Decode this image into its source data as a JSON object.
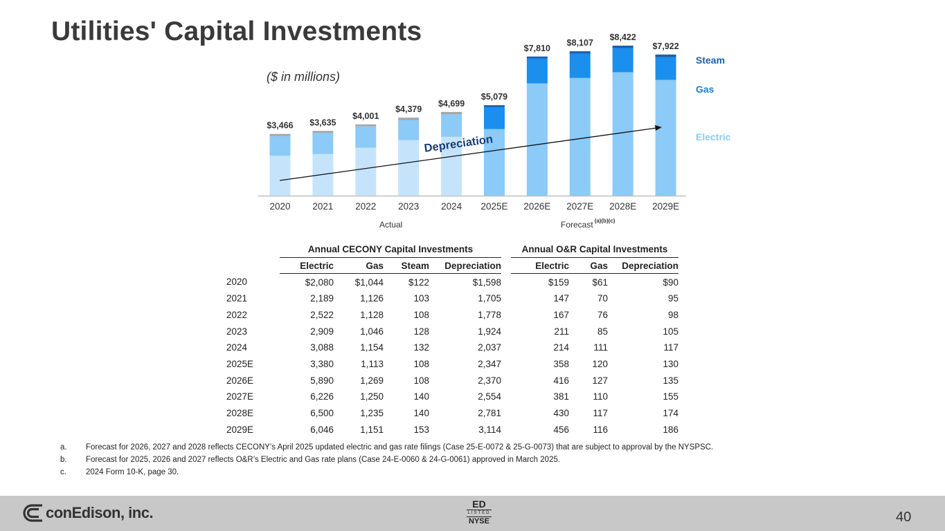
{
  "slide": {
    "title": "Utilities' Capital Investments",
    "units_note": "($ in millions)",
    "page_number": "40"
  },
  "chart_data": {
    "type": "bar",
    "stacked": true,
    "title": "Utilities' Capital Investments",
    "units": "($ in millions)",
    "categories": [
      "2020",
      "2021",
      "2022",
      "2023",
      "2024",
      "2025E",
      "2026E",
      "2027E",
      "2028E",
      "2029E"
    ],
    "totals": [
      3466,
      3635,
      4001,
      4379,
      4699,
      5079,
      7810,
      8107,
      8422,
      7922
    ],
    "total_labels": [
      "$3,466",
      "$3,635",
      "$4,001",
      "$4,379",
      "$4,699",
      "$5,079",
      "$7,810",
      "$8,107",
      "$8,422",
      "$7,922"
    ],
    "series": [
      {
        "name": "Electric",
        "values": [
          2239,
          2336,
          2689,
          3120,
          3302,
          3738,
          6306,
          6607,
          6930,
          6502
        ]
      },
      {
        "name": "Gas",
        "values": [
          1105,
          1196,
          1204,
          1131,
          1265,
          1233,
          1396,
          1360,
          1352,
          1267
        ]
      },
      {
        "name": "Steam",
        "values": [
          122,
          103,
          108,
          128,
          132,
          108,
          108,
          140,
          140,
          153
        ]
      }
    ],
    "depreciation_line": {
      "label": "Depreciation",
      "from_category": "2020",
      "to_category": "2029E"
    },
    "legend": [
      "Steam",
      "Gas",
      "Electric"
    ],
    "legend_position": "right",
    "group_labels": {
      "actual": "Actual",
      "forecast": "Forecast",
      "forecast_notes": "(a)(b)(c)"
    },
    "ylim": [
      0,
      9000
    ],
    "colors": {
      "actual": {
        "Electric": "#c5e4fc",
        "Gas": "#8ccaf7",
        "Steam": "#a6a6a6"
      },
      "forecast": {
        "Electric": "#8ccaf7",
        "Gas": "#1a8fee",
        "Steam": "#1d5ea8"
      }
    }
  },
  "table": {
    "cecony_header": "Annual CECONY Capital Investments",
    "or_header": "Annual O&R Capital Investments",
    "cecony_columns": [
      "Electric",
      "Gas",
      "Steam",
      "Depreciation"
    ],
    "or_columns": [
      "Electric",
      "Gas",
      "Depreciation"
    ],
    "rows": [
      {
        "year": "2020",
        "cecony": [
          "$2,080",
          "$1,044",
          "$122",
          "$1,598"
        ],
        "or": [
          "$159",
          "$61",
          "$90"
        ]
      },
      {
        "year": "2021",
        "cecony": [
          "2,189",
          "1,126",
          "103",
          "1,705"
        ],
        "or": [
          "147",
          "70",
          "95"
        ]
      },
      {
        "year": "2022",
        "cecony": [
          "2,522",
          "1,128",
          "108",
          "1,778"
        ],
        "or": [
          "167",
          "76",
          "98"
        ]
      },
      {
        "year": "2023",
        "cecony": [
          "2,909",
          "1,046",
          "128",
          "1,924"
        ],
        "or": [
          "211",
          "85",
          "105"
        ]
      },
      {
        "year": "2024",
        "cecony": [
          "3,088",
          "1,154",
          "132",
          "2,037"
        ],
        "or": [
          "214",
          "111",
          "117"
        ]
      },
      {
        "year": "2025E",
        "cecony": [
          "3,380",
          "1,113",
          "108",
          "2,347"
        ],
        "or": [
          "358",
          "120",
          "130"
        ]
      },
      {
        "year": "2026E",
        "cecony": [
          "5,890",
          "1,269",
          "108",
          "2,370"
        ],
        "or": [
          "416",
          "127",
          "135"
        ]
      },
      {
        "year": "2027E",
        "cecony": [
          "6,226",
          "1,250",
          "140",
          "2,554"
        ],
        "or": [
          "381",
          "110",
          "155"
        ]
      },
      {
        "year": "2028E",
        "cecony": [
          "6,500",
          "1,235",
          "140",
          "2,781"
        ],
        "or": [
          "430",
          "117",
          "174"
        ]
      },
      {
        "year": "2029E",
        "cecony": [
          "6,046",
          "1,151",
          "153",
          "3,114"
        ],
        "or": [
          "456",
          "116",
          "186"
        ]
      }
    ]
  },
  "footnotes": [
    {
      "letter": "a.",
      "text": "Forecast for 2026, 2027 and 2028 reflects CECONY’s April 2025 updated electric and gas rate filings (Case 25-E-0072 & 25-G-0073) that are subject to approval by the NYSPSC."
    },
    {
      "letter": "b.",
      "text": "Forecast for 2025, 2026 and 2027 reflects O&R’s Electric and Gas rate plans (Case 24-E-0060 & 24-G-0061) approved in March 2025."
    },
    {
      "letter": "c.",
      "text": "2024 Form 10-K, page 30."
    }
  ],
  "footer": {
    "company_logo": "conEdison, inc.",
    "ticker": "ED",
    "listed_label": "LISTED",
    "exchange": "NYSE"
  }
}
